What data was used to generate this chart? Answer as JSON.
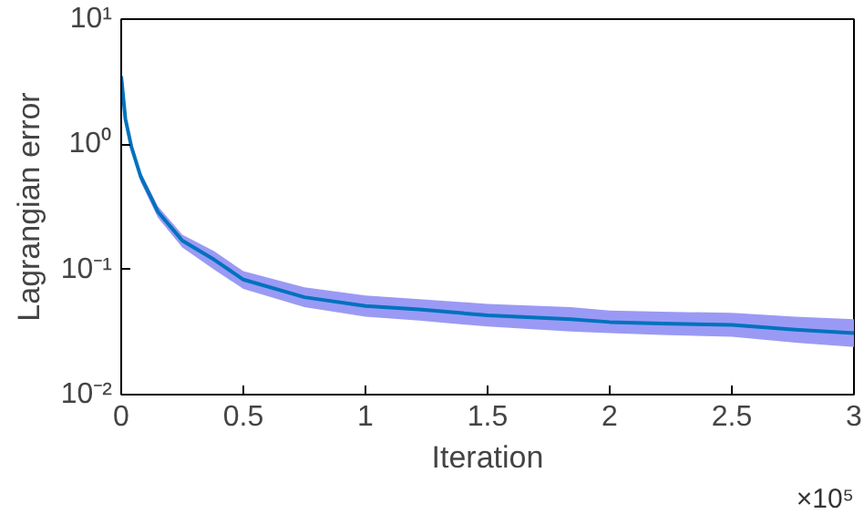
{
  "chart_data": {
    "type": "line",
    "xlabel": "Iteration",
    "ylabel": "Lagrangian error",
    "log": "y",
    "grid": false,
    "marker": "none",
    "line_style": "solid",
    "xlim": [
      0,
      3
    ],
    "xticks": [
      0,
      0.5,
      1,
      1.5,
      2,
      2.5,
      3
    ],
    "ylim": [
      0.01,
      10
    ],
    "yticks": [
      {
        "value": 0.01,
        "label": "10⁻²"
      },
      {
        "value": 0.1,
        "label": "10⁻¹"
      },
      {
        "value": 1,
        "label": "10⁰"
      },
      {
        "value": 10,
        "label": "10¹"
      }
    ],
    "annotations": [
      "×10⁵"
    ],
    "series": [
      {
        "color": "#0072bd",
        "x": [
          0,
          0.017,
          0.042,
          0.08,
          0.15,
          0.25,
          0.38,
          0.5,
          0.75,
          1.0,
          1.22,
          1.5,
          1.84,
          2.0,
          2.21,
          2.5,
          2.76,
          3.0
        ],
        "values": [
          3.5,
          1.6,
          0.95,
          0.55,
          0.29,
          0.17,
          0.12,
          0.083,
          0.06,
          0.051,
          0.048,
          0.043,
          0.04,
          0.038,
          0.037,
          0.036,
          0.033,
          0.031
        ],
        "lower": [
          3.3,
          1.5,
          0.88,
          0.5,
          0.26,
          0.15,
          0.1,
          0.07,
          0.05,
          0.042,
          0.039,
          0.035,
          0.032,
          0.031,
          0.03,
          0.029,
          0.026,
          0.024
        ],
        "upper": [
          3.7,
          1.7,
          1.02,
          0.6,
          0.32,
          0.19,
          0.14,
          0.097,
          0.072,
          0.062,
          0.058,
          0.053,
          0.05,
          0.047,
          0.046,
          0.045,
          0.042,
          0.04
        ]
      }
    ]
  }
}
